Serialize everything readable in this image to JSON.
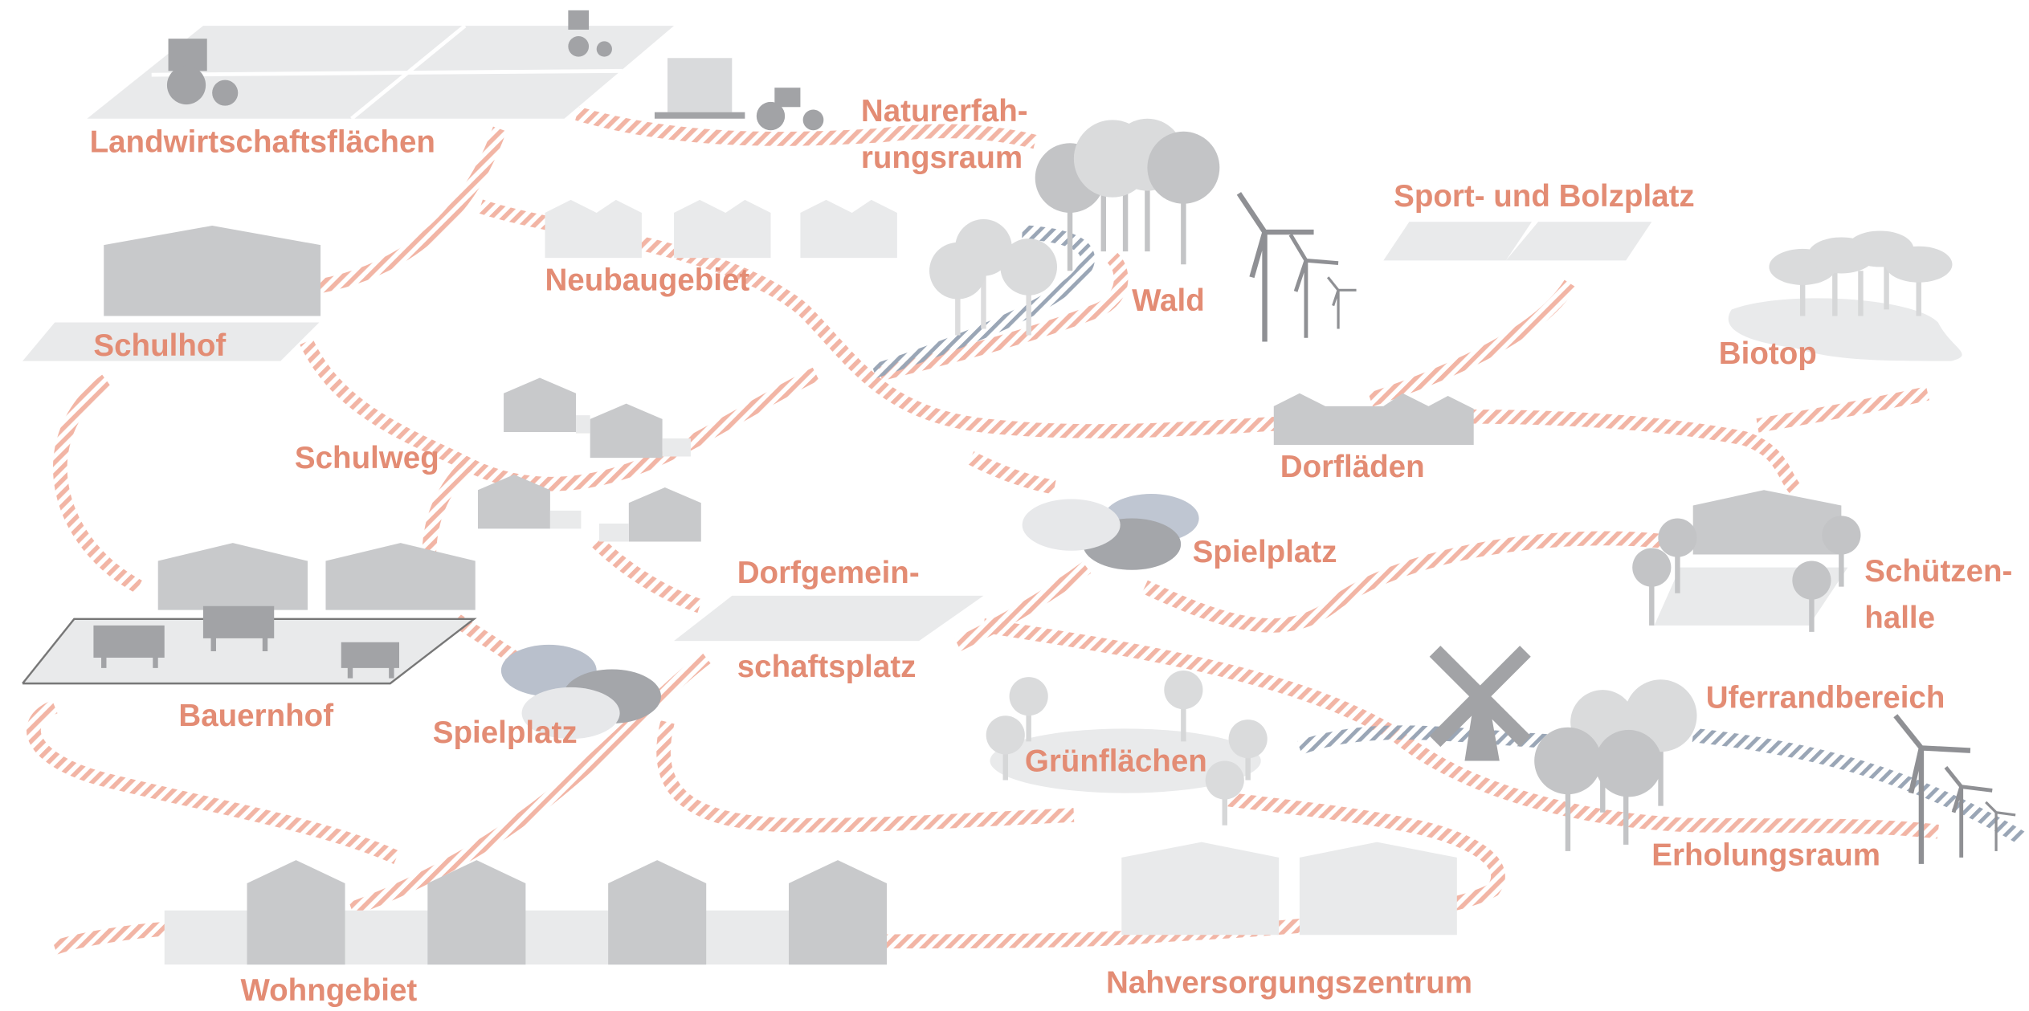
{
  "labels": [
    {
      "lines": [
        "Landwirtschaftsflächen"
      ]
    },
    {
      "lines": [
        "Naturerfah-",
        "rungsraum"
      ]
    },
    {
      "lines": [
        "Sport- und Bolzplatz"
      ]
    },
    {
      "lines": [
        "Neubaugebiet"
      ]
    },
    {
      "lines": [
        "Wald"
      ]
    },
    {
      "lines": [
        "Biotop"
      ]
    },
    {
      "lines": [
        "Schulhof"
      ]
    },
    {
      "lines": [
        "Schulweg"
      ]
    },
    {
      "lines": [
        "Dorfläden"
      ]
    },
    {
      "lines": [
        "Spielplatz"
      ]
    },
    {
      "lines": [
        "Dorfgemein-",
        "schaftsplatz"
      ]
    },
    {
      "lines": [
        "Schützen-",
        "halle"
      ]
    },
    {
      "lines": [
        "Bauernhof"
      ]
    },
    {
      "lines": [
        "Spielplatz"
      ]
    },
    {
      "lines": [
        "Uferrandbereich"
      ]
    },
    {
      "lines": [
        "Grünflächen"
      ]
    },
    {
      "lines": [
        "Erholungsraum"
      ]
    },
    {
      "lines": [
        "Wohngebiet"
      ]
    },
    {
      "lines": [
        "Nahversorgungszentrum"
      ]
    }
  ]
}
